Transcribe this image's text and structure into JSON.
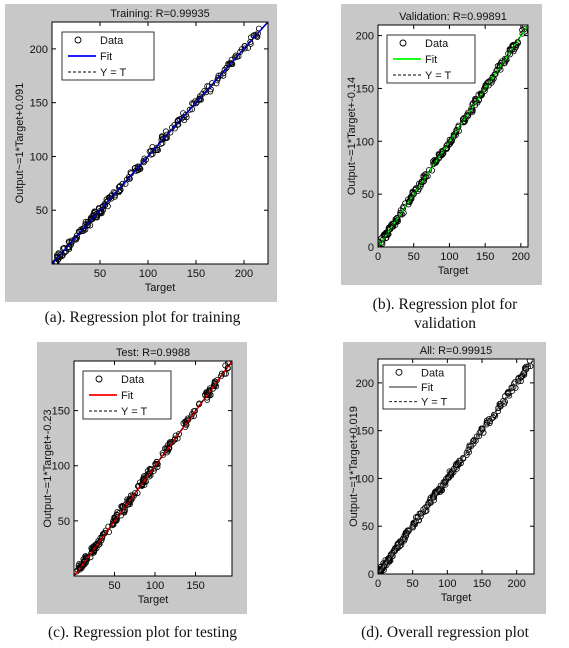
{
  "chart_data": [
    {
      "type": "scatter",
      "title": "Training: R=0.99935",
      "xlabel": "Target",
      "ylabel": "Output~=1*Target+0.091",
      "xlim": [
        0,
        225
      ],
      "ylim": [
        0,
        225
      ],
      "xticks": [
        50,
        100,
        150,
        200
      ],
      "yticks": [
        50,
        100,
        150,
        200
      ],
      "legend": [
        "Data",
        "Fit",
        "Y = T"
      ],
      "legend_position": "top-left",
      "fit_color": "#0000ff",
      "fit": {
        "slope": 1,
        "intercept": 0.091
      },
      "point_range": [
        3,
        220
      ],
      "grid": false,
      "caption": "(a). Regression plot for training"
    },
    {
      "type": "scatter",
      "title": "Validation: R=0.99891",
      "xlabel": "Target",
      "ylabel": "Output~=1*Target+-0.14",
      "xlim": [
        0,
        210
      ],
      "ylim": [
        0,
        210
      ],
      "xticks": [
        0,
        50,
        100,
        150,
        200
      ],
      "yticks": [
        0,
        50,
        100,
        150,
        200
      ],
      "legend": [
        "Data",
        "Fit",
        "Y = T"
      ],
      "legend_position": "top-left",
      "fit_color": "#00ff00",
      "fit": {
        "slope": 1,
        "intercept": -0.14
      },
      "point_range": [
        0,
        207
      ],
      "grid": false,
      "caption": "(b). Regression plot for validation"
    },
    {
      "type": "scatter",
      "title": "Test: R=0.9988",
      "xlabel": "Target",
      "ylabel": "Output~=1*Target+-0.23",
      "xlim": [
        0,
        195
      ],
      "ylim": [
        0,
        195
      ],
      "xticks": [
        50,
        100,
        150
      ],
      "yticks": [
        50,
        100,
        150
      ],
      "legend": [
        "Data",
        "Fit",
        "Y = T"
      ],
      "legend_position": "top-left",
      "fit_color": "#ff0000",
      "fit": {
        "slope": 1,
        "intercept": -0.23
      },
      "point_range": [
        3,
        192
      ],
      "grid": false,
      "caption": "(c). Regression plot for testing"
    },
    {
      "type": "scatter",
      "title": "All: R=0.99915",
      "xlabel": "Target",
      "ylabel": "Output~=1*Target+0.019",
      "xlim": [
        0,
        225
      ],
      "ylim": [
        0,
        225
      ],
      "xticks": [
        0,
        50,
        100,
        150,
        200
      ],
      "yticks": [
        0,
        50,
        100,
        150,
        200
      ],
      "legend": [
        "Data",
        "Fit",
        "Y = T"
      ],
      "legend_position": "top-left",
      "fit_color": "#808080",
      "fit": {
        "slope": 1,
        "intercept": 0.019
      },
      "point_range": [
        0,
        220
      ],
      "grid": false,
      "caption": "(d). Overall regression plot"
    }
  ]
}
